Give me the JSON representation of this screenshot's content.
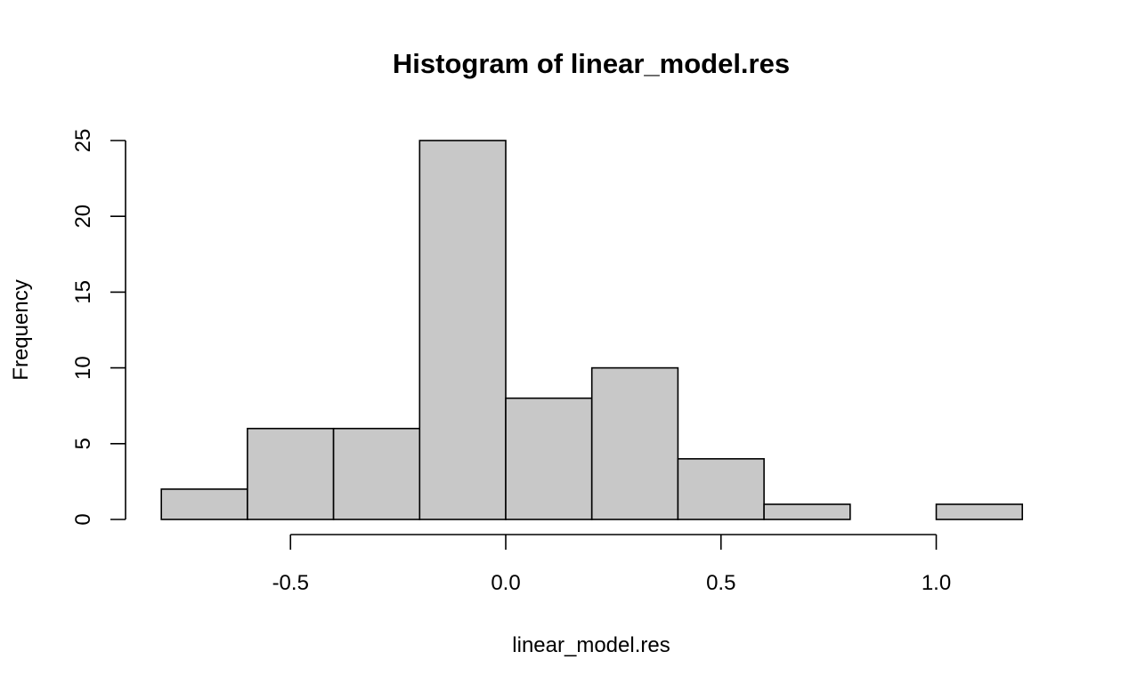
{
  "chart_data": {
    "type": "bar",
    "title": "Histogram of linear_model.res",
    "xlabel": "linear_model.res",
    "ylabel": "Frequency",
    "bins": [
      {
        "from": -0.8,
        "to": -0.6,
        "count": 2
      },
      {
        "from": -0.6,
        "to": -0.4,
        "count": 6
      },
      {
        "from": -0.4,
        "to": -0.2,
        "count": 6
      },
      {
        "from": -0.2,
        "to": 0.0,
        "count": 25
      },
      {
        "from": 0.0,
        "to": 0.2,
        "count": 8
      },
      {
        "from": 0.2,
        "to": 0.4,
        "count": 10
      },
      {
        "from": 0.4,
        "to": 0.6,
        "count": 4
      },
      {
        "from": 0.6,
        "to": 0.8,
        "count": 1
      },
      {
        "from": 0.8,
        "to": 1.0,
        "count": 0
      },
      {
        "from": 1.0,
        "to": 1.2,
        "count": 1
      }
    ],
    "xlim": [
      -0.8,
      1.2
    ],
    "ylim": [
      0,
      25
    ],
    "x_ticks": [
      -0.5,
      0.0,
      0.5,
      1.0
    ],
    "x_tick_labels": [
      "-0.5",
      "0.0",
      "0.5",
      "1.0"
    ],
    "y_ticks": [
      0,
      5,
      10,
      15,
      20,
      25
    ],
    "y_tick_labels": [
      "0",
      "5",
      "10",
      "15",
      "20",
      "25"
    ],
    "grid": false,
    "legend": "none"
  }
}
